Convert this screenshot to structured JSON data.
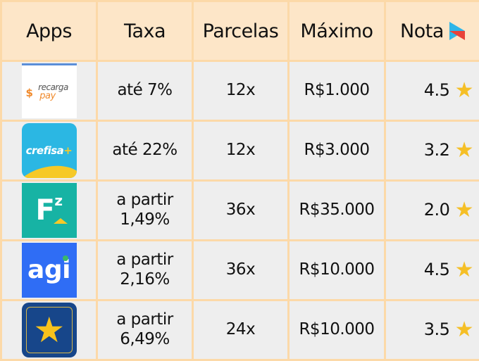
{
  "headers": {
    "apps": "Apps",
    "taxa": "Taxa",
    "parcelas": "Parcelas",
    "maximo": "Máximo",
    "nota": "Nota"
  },
  "header_icon": "google-play-icon",
  "rows": [
    {
      "logo": "recarga pay",
      "taxa": "até 7%",
      "taxa2": "",
      "parcelas": "12x",
      "maximo": "R$1.000",
      "nota": "4.5"
    },
    {
      "logo": "crefisa+",
      "taxa": "até 22%",
      "taxa2": "",
      "parcelas": "12x",
      "maximo": "R$3.000",
      "nota": "3.2"
    },
    {
      "logo": "Fz",
      "taxa": "a partir",
      "taxa2": "1,49%",
      "parcelas": "36x",
      "maximo": "R$35.000",
      "nota": "2.0"
    },
    {
      "logo": "agi",
      "taxa": "a partir",
      "taxa2": "2,16%",
      "parcelas": "36x",
      "maximo": "R$10.000",
      "nota": "4.5"
    },
    {
      "logo": "",
      "taxa": "a partir",
      "taxa2": "6,49%",
      "parcelas": "24x",
      "maximo": "R$10.000",
      "nota": "3.5"
    }
  ],
  "colors": {
    "border": "#fcd9a8",
    "header_bg": "#fde6c8",
    "row_bg": "#eeeeee",
    "star": "#f5bf26"
  }
}
